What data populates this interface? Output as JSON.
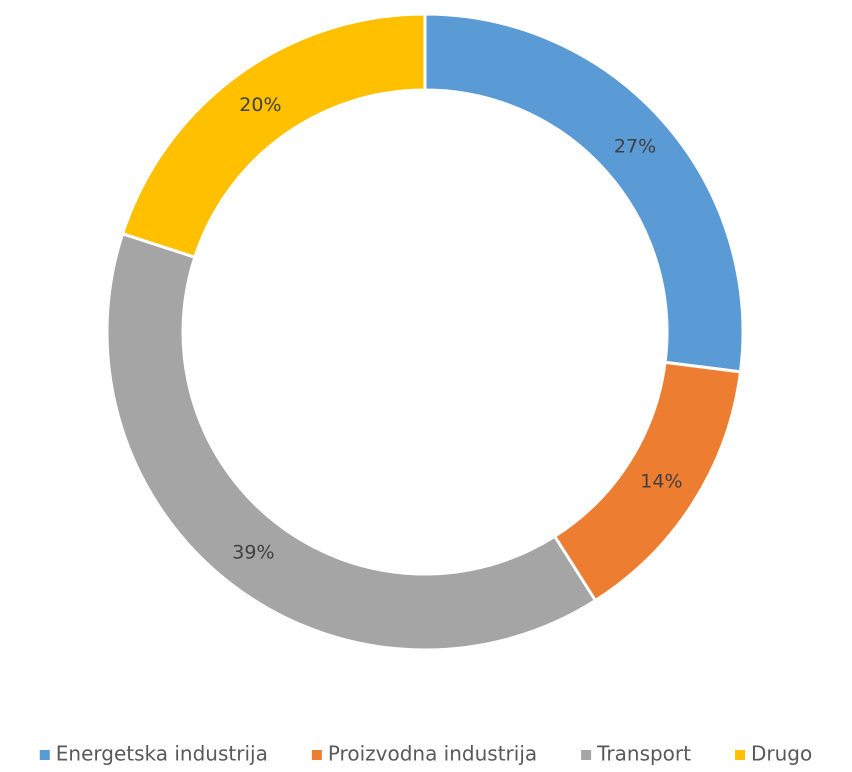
{
  "chart_data": {
    "type": "donut",
    "categories": [
      "Energetska industrija",
      "Proizvodna industrija",
      "Transport",
      "Drugo"
    ],
    "values": [
      27,
      14,
      39,
      20
    ],
    "value_labels": [
      "27%",
      "14%",
      "39%",
      "20%"
    ],
    "colors": [
      "#5b9bd5",
      "#ed7d31",
      "#a5a5a5",
      "#ffc000"
    ],
    "legend": "bottom"
  }
}
